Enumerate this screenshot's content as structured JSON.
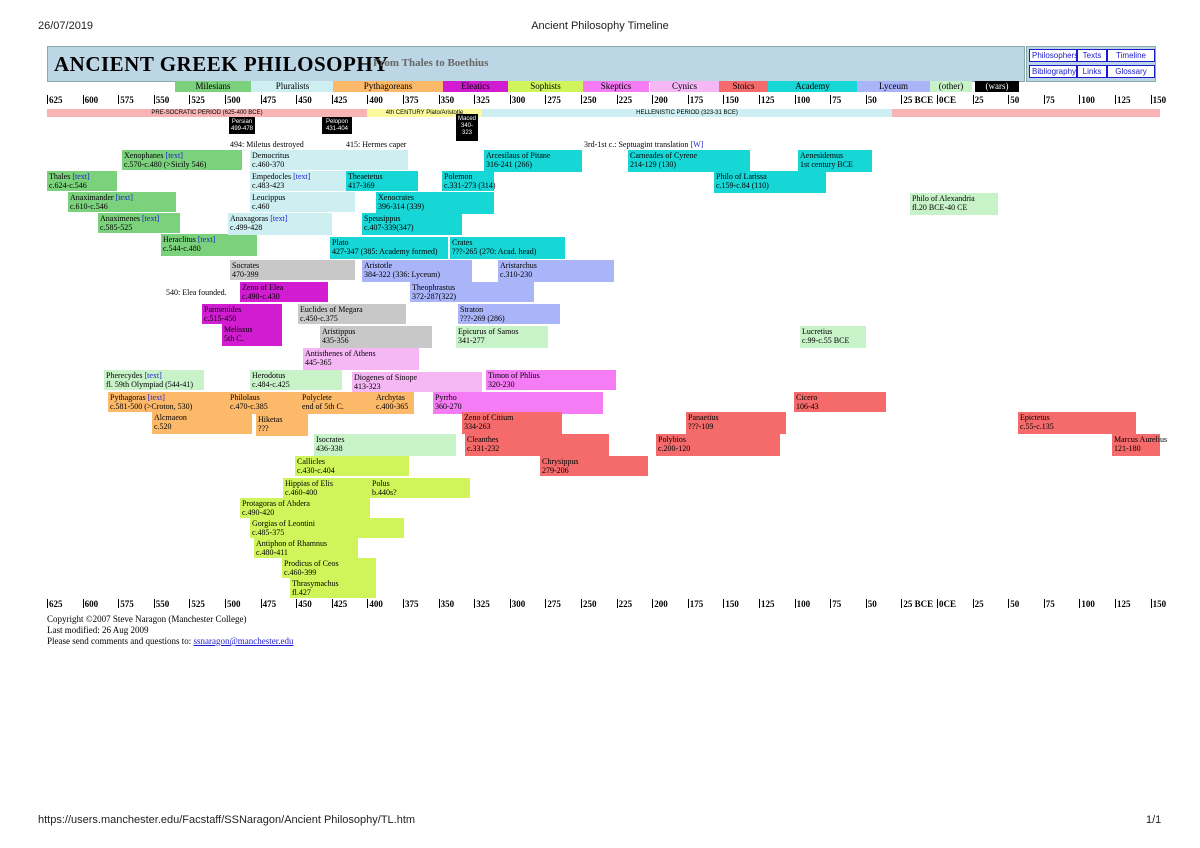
{
  "print_header": {
    "date": "26/07/2019",
    "title": "Ancient Philosophy Timeline"
  },
  "print_footer": {
    "url": "https://users.manchester.edu/Facstaff/SSNaragon/Ancient Philosophy/TL.htm",
    "page": "1/1"
  },
  "header": {
    "title": "ANCIENT GREEK PHILOSOPHY",
    "subtitle": "From Thales to Boethius"
  },
  "nav_links": [
    "Philosophers",
    "Texts",
    "Timeline",
    "Bibliography",
    "Links",
    "Glossary"
  ],
  "schools": [
    {
      "label": "Milesians",
      "color": "#7cd17c"
    },
    {
      "label": "Pluralists",
      "color": "#cdeff2"
    },
    {
      "label": "Pythagoreans",
      "color": "#fcb96a"
    },
    {
      "label": "Eleatics",
      "color": "#d21cd2"
    },
    {
      "label": "Sophists",
      "color": "#cff55a"
    },
    {
      "label": "Skeptics",
      "color": "#f57cf5"
    },
    {
      "label": "Cynics",
      "color": "#f5b8f5"
    },
    {
      "label": "Stoics",
      "color": "#f56a6a"
    },
    {
      "label": "Academy",
      "color": "#16d6d6"
    },
    {
      "label": "Lyceum",
      "color": "#aab4f8"
    },
    {
      "label": "(other)",
      "color": "#c8f2c8"
    },
    {
      "label": "(wars)",
      "color": "#000000"
    }
  ],
  "scale_labels": [
    "625",
    "600",
    "575",
    "550",
    "525",
    "500",
    "475",
    "450",
    "425",
    "400",
    "375",
    "350",
    "325",
    "300",
    "275",
    "250",
    "225",
    "200",
    "175",
    "150",
    "125",
    "100",
    "75",
    "50",
    "25 BCE",
    "0CE",
    "25",
    "50",
    "75",
    "100",
    "125",
    "150"
  ],
  "periods": {
    "pre_socratic": "PRE-SOCRATIC PERIOD (625-400 BCE)",
    "fourth_century": "4th CENTURY Plato/Aristotle",
    "hellenistic": "HELLENISTIC PERIOD (323-31 BCE)"
  },
  "wars": [
    {
      "label": "Persian",
      "dates": "499-478"
    },
    {
      "label": "Pelopon",
      "dates": "431-404"
    },
    {
      "label": "Maced",
      "dates": "340-323"
    }
  ],
  "events": [
    {
      "text": "494: Miletus destroyed"
    },
    {
      "text": "415: Hermes caper"
    },
    {
      "text": "3rd-1st c.: Septuagint translation ",
      "link": "[W]"
    },
    {
      "text": "540: Elea founded."
    }
  ],
  "philosophers": [
    {
      "name": "Xenophanes",
      "link": "[text]",
      "dates": "c.570-c.480 (>Sicily 546)"
    },
    {
      "name": "Thales",
      "link": "[text]",
      "dates": "c.624-c.546"
    },
    {
      "name": "Anaximander",
      "link": "[text]",
      "dates": "c.610-c.546"
    },
    {
      "name": "Anaximenes",
      "link": "[text]",
      "dates": "c.585-525"
    },
    {
      "name": "Heraclitus",
      "link": "[text]",
      "dates": "c.544-c.480"
    },
    {
      "name": "Democritus",
      "dates": "c.460-370"
    },
    {
      "name": "Empedocles",
      "link": "[text]",
      "dates": "c.483-423"
    },
    {
      "name": "Leucippus",
      "dates": "c.460"
    },
    {
      "name": "Anaxagoras",
      "link": "[text]",
      "dates": "c.499-428"
    },
    {
      "name": "Theaetetus",
      "dates": "417-369"
    },
    {
      "name": "Xenocrates",
      "dates": "396-314 (339)"
    },
    {
      "name": "Speusippus",
      "dates": "c.407-339(347)"
    },
    {
      "name": "Plato",
      "dates": "427-347 (385: Academy formed)"
    },
    {
      "name": "Crates",
      "dates": "???-265 (270: Acad. head)"
    },
    {
      "name": "Polemon",
      "dates": "c.331-273 (314)"
    },
    {
      "name": "Arcesilaus of Pitane",
      "dates": "316-241 (266)"
    },
    {
      "name": "Carneades of Cyrene",
      "dates": "214-129 (130)"
    },
    {
      "name": "Aenesidemus",
      "dates": "1st century BCE"
    },
    {
      "name": "Philo of Larissa",
      "dates": "c.159-c.84 (110)"
    },
    {
      "name": "Philo of Alexandria",
      "dates": "fl.20 BCE-40 CE"
    },
    {
      "name": "Socrates",
      "dates": "470-399"
    },
    {
      "name": "Aristotle",
      "dates": "384-322 (336: Lyceum)"
    },
    {
      "name": "Aristarchus",
      "dates": "c.310-230"
    },
    {
      "name": "Theophrastus",
      "dates": "372-287(322)"
    },
    {
      "name": "Zeno of Elea",
      "dates": "c.490-c.430"
    },
    {
      "name": "Parmenides",
      "dates": "c.515-450"
    },
    {
      "name": "Melissus",
      "dates": "5th C."
    },
    {
      "name": "Euclides of Megara",
      "dates": "c.450-c.375"
    },
    {
      "name": "Aristippus",
      "dates": "435-356"
    },
    {
      "name": "Straton",
      "dates": "???-269 (286)"
    },
    {
      "name": "Epicurus of Samos",
      "dates": "341-277"
    },
    {
      "name": "Lucretius",
      "dates": "c.99-c.55 BCE"
    },
    {
      "name": "Antisthenes of Athens",
      "dates": "445-365"
    },
    {
      "name": "Pherecydes",
      "link": "[text]",
      "dates": "fl. 59th Olympiad (544-41)"
    },
    {
      "name": "Herodotus",
      "dates": "c.484-c.425"
    },
    {
      "name": "Diogenes of Sinope",
      "dates": "413-323"
    },
    {
      "name": "Timon of Phlius",
      "dates": "320-230"
    },
    {
      "name": "Pythagoras",
      "link": "[text]",
      "dates": "c.581-500 (>Croton, 530)"
    },
    {
      "name": "Alcmaeon",
      "dates": "c.520"
    },
    {
      "name": "Philolaus",
      "dates": "c.470-c.385"
    },
    {
      "name": "Hiketas",
      "dates": "???"
    },
    {
      "name": "Polyclete",
      "dates": "end of 5th C."
    },
    {
      "name": "Archytas",
      "dates": "c.400-365"
    },
    {
      "name": "Pyrrho",
      "dates": "360-270"
    },
    {
      "name": "Cicero",
      "dates": "106-43"
    },
    {
      "name": "Zeno of Citium",
      "dates": "334-263"
    },
    {
      "name": "Panaetius",
      "dates": "???-109"
    },
    {
      "name": "Epictetus",
      "dates": "c.55-c.135"
    },
    {
      "name": "Isocrates",
      "dates": "436-338"
    },
    {
      "name": "Cleanthes",
      "dates": "c.331-232"
    },
    {
      "name": "Polybios",
      "dates": "c.200-120"
    },
    {
      "name": "Marcus Aurelius",
      "dates": "121-180"
    },
    {
      "name": "Callicles",
      "dates": "c.430-c.404"
    },
    {
      "name": "Chrysippus",
      "dates": "279-206"
    },
    {
      "name": "Hippias of Elis",
      "dates": "c.460-400"
    },
    {
      "name": "Polus",
      "dates": "b.440s?"
    },
    {
      "name": "Protagoras of Abdera",
      "dates": "c.490-420"
    },
    {
      "name": "Gorgias of Leontini",
      "dates": "c.485-375"
    },
    {
      "name": "Antiphon of Rhamnus",
      "dates": "c.480-411"
    },
    {
      "name": "Prodicus of Ceos",
      "dates": "c.460-399"
    },
    {
      "name": "Thrasymachus",
      "dates": "fl.427"
    }
  ],
  "footer": {
    "copyright": "Copyright ©2007 Steve Naragon (Manchester College)",
    "modified": "Last modified: 26 Aug 2009",
    "contact": "Please send comments and questions to: ",
    "email": "ssnaragon@manchester.edu"
  }
}
